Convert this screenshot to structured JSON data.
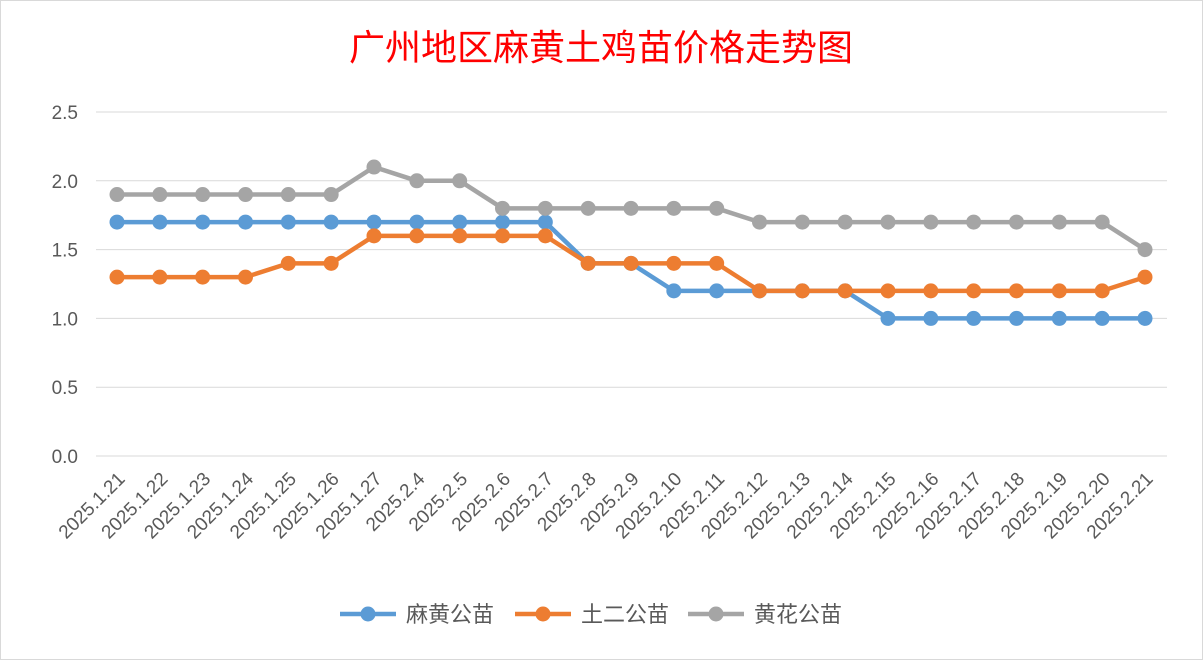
{
  "chart_data": {
    "type": "line",
    "title": "广州地区麻黄土鸡苗价格走势图",
    "xlabel": "",
    "ylabel": "",
    "ylim": [
      0,
      2.5
    ],
    "yticks": [
      "0.0",
      "0.5",
      "1.0",
      "1.5",
      "2.0",
      "2.5"
    ],
    "grid": true,
    "legend_position": "bottom",
    "categories": [
      "2025.1.21",
      "2025.1.22",
      "2025.1.23",
      "2025.1.24",
      "2025.1.25",
      "2025.1.26",
      "2025.1.27",
      "2025.2.4",
      "2025.2.5",
      "2025.2.6",
      "2025.2.7",
      "2025.2.8",
      "2025.2.9",
      "2025.2.10",
      "2025.2.11",
      "2025.2.12",
      "2025.2.13",
      "2025.2.14",
      "2025.2.15",
      "2025.2.16",
      "2025.2.17",
      "2025.2.18",
      "2025.2.19",
      "2025.2.20",
      "2025.2.21"
    ],
    "series": [
      {
        "name": "麻黄公苗",
        "color": "#5b9bd5",
        "values": [
          1.7,
          1.7,
          1.7,
          1.7,
          1.7,
          1.7,
          1.7,
          1.7,
          1.7,
          1.7,
          1.7,
          1.4,
          1.4,
          1.2,
          1.2,
          1.2,
          1.2,
          1.2,
          1.0,
          1.0,
          1.0,
          1.0,
          1.0,
          1.0,
          1.0
        ]
      },
      {
        "name": "土二公苗",
        "color": "#ed7d31",
        "values": [
          1.3,
          1.3,
          1.3,
          1.3,
          1.4,
          1.4,
          1.6,
          1.6,
          1.6,
          1.6,
          1.6,
          1.4,
          1.4,
          1.4,
          1.4,
          1.2,
          1.2,
          1.2,
          1.2,
          1.2,
          1.2,
          1.2,
          1.2,
          1.2,
          1.3
        ]
      },
      {
        "name": "黄花公苗",
        "color": "#a5a5a5",
        "values": [
          1.9,
          1.9,
          1.9,
          1.9,
          1.9,
          1.9,
          2.1,
          2.0,
          2.0,
          1.8,
          1.8,
          1.8,
          1.8,
          1.8,
          1.8,
          1.7,
          1.7,
          1.7,
          1.7,
          1.7,
          1.7,
          1.7,
          1.7,
          1.7,
          1.5
        ]
      }
    ],
    "title_color": "#ff0000",
    "grid_color": "#d9d9d9",
    "text_color": "#595959"
  }
}
